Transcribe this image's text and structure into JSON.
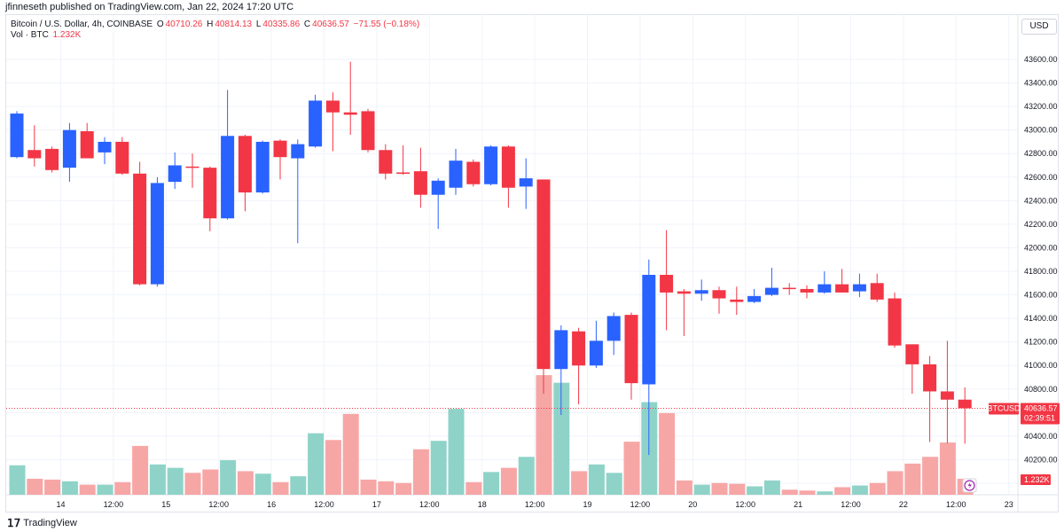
{
  "header": {
    "caption": "jfinneseth published on TradingView.com, Jan 22, 2024 17:20 UTC"
  },
  "legend": {
    "symbol": "Bitcoin / U.S. Dollar, 4h, COINBASE",
    "open_label": "O",
    "open": "40710.26",
    "high_label": "H",
    "high": "40814.13",
    "low_label": "L",
    "low": "40335.86",
    "close_label": "C",
    "close": "40636.57",
    "change": "−71.55 (−0.18%)",
    "vol_label": "Vol · BTC",
    "vol_value": "1.232K"
  },
  "currency": "USD",
  "price_tag": {
    "symbol": "BTCUSD",
    "price": "40636.57",
    "countdown": "02:39:51"
  },
  "vol_tag": "1.232K",
  "footer": {
    "brand": "TradingView"
  },
  "colors": {
    "up": "#2962ff",
    "down": "#f23645",
    "vol_up": "#8fd3c8",
    "vol_down": "#f7a6a6",
    "grid": "#f0f3fa",
    "price_line": "#f23645"
  },
  "chart_data": {
    "type": "candlestick",
    "y_axis": {
      "min": 40000,
      "max": 43700,
      "ticks": [
        "43600.00",
        "43400.00",
        "43200.00",
        "43000.00",
        "42800.00",
        "42600.00",
        "42400.00",
        "42200.00",
        "42000.00",
        "41800.00",
        "41600.00",
        "41400.00",
        "41200.00",
        "41000.00",
        "40800.00",
        "40600.00",
        "40400.00",
        "40200.00",
        "40000.00"
      ]
    },
    "x_ticks": [
      {
        "label": "14",
        "index": 2.5
      },
      {
        "label": "12:00",
        "index": 5.5
      },
      {
        "label": "15",
        "index": 8.5
      },
      {
        "label": "12:00",
        "index": 11.5
      },
      {
        "label": "16",
        "index": 14.5
      },
      {
        "label": "12:00",
        "index": 17.5
      },
      {
        "label": "17",
        "index": 20.5
      },
      {
        "label": "12:00",
        "index": 23.5
      },
      {
        "label": "18",
        "index": 26.5
      },
      {
        "label": "12:00",
        "index": 29.5
      },
      {
        "label": "19",
        "index": 32.5
      },
      {
        "label": "12:00",
        "index": 35.5
      },
      {
        "label": "20",
        "index": 38.5
      },
      {
        "label": "12:00",
        "index": 41.5
      },
      {
        "label": "21",
        "index": 44.5
      },
      {
        "label": "12:00",
        "index": 47.5
      },
      {
        "label": "22",
        "index": 50.5
      },
      {
        "label": "12:00",
        "index": 53.5
      },
      {
        "label": "23",
        "index": 56.5
      }
    ],
    "last_price": 40636.57,
    "volume_max": 1.0,
    "candles": [
      {
        "o": 42770,
        "h": 43160,
        "l": 42760,
        "c": 43140,
        "v": 0.35
      },
      {
        "o": 42830,
        "h": 43040,
        "l": 42690,
        "c": 42760,
        "v": 0.19
      },
      {
        "o": 42840,
        "h": 42860,
        "l": 42640,
        "c": 42660,
        "v": 0.18
      },
      {
        "o": 42680,
        "h": 43060,
        "l": 42560,
        "c": 43000,
        "v": 0.16
      },
      {
        "o": 42990,
        "h": 43060,
        "l": 42760,
        "c": 42760,
        "v": 0.12
      },
      {
        "o": 42810,
        "h": 42940,
        "l": 42710,
        "c": 42900,
        "v": 0.12
      },
      {
        "o": 42900,
        "h": 42940,
        "l": 42620,
        "c": 42630,
        "v": 0.15
      },
      {
        "o": 42630,
        "h": 42730,
        "l": 41680,
        "c": 41690,
        "v": 0.58
      },
      {
        "o": 41690,
        "h": 42600,
        "l": 41670,
        "c": 42550,
        "v": 0.36
      },
      {
        "o": 42560,
        "h": 42810,
        "l": 42500,
        "c": 42700,
        "v": 0.32
      },
      {
        "o": 42690,
        "h": 42800,
        "l": 42510,
        "c": 42680,
        "v": 0.26
      },
      {
        "o": 42680,
        "h": 42690,
        "l": 42140,
        "c": 42250,
        "v": 0.3
      },
      {
        "o": 42250,
        "h": 43340,
        "l": 42240,
        "c": 42950,
        "v": 0.41
      },
      {
        "o": 42950,
        "h": 42960,
        "l": 42310,
        "c": 42470,
        "v": 0.28
      },
      {
        "o": 42470,
        "h": 42910,
        "l": 42460,
        "c": 42900,
        "v": 0.25
      },
      {
        "o": 42910,
        "h": 42920,
        "l": 42580,
        "c": 42770,
        "v": 0.15
      },
      {
        "o": 42760,
        "h": 42920,
        "l": 42040,
        "c": 42880,
        "v": 0.22
      },
      {
        "o": 42860,
        "h": 43300,
        "l": 42850,
        "c": 43250,
        "v": 0.73
      },
      {
        "o": 43250,
        "h": 43320,
        "l": 42820,
        "c": 43150,
        "v": 0.65
      },
      {
        "o": 43150,
        "h": 43580,
        "l": 42960,
        "c": 43130,
        "v": 0.96
      },
      {
        "o": 43160,
        "h": 43180,
        "l": 42810,
        "c": 42830,
        "v": 0.18
      },
      {
        "o": 42830,
        "h": 42880,
        "l": 42580,
        "c": 42630,
        "v": 0.16
      },
      {
        "o": 42640,
        "h": 42870,
        "l": 42620,
        "c": 42630,
        "v": 0.14
      },
      {
        "o": 42650,
        "h": 42850,
        "l": 42340,
        "c": 42450,
        "v": 0.54
      },
      {
        "o": 42450,
        "h": 42590,
        "l": 42160,
        "c": 42570,
        "v": 0.64
      },
      {
        "o": 42510,
        "h": 42840,
        "l": 42450,
        "c": 42740,
        "v": 1.02
      },
      {
        "o": 42730,
        "h": 42750,
        "l": 42520,
        "c": 42540,
        "v": 0.15
      },
      {
        "o": 42540,
        "h": 42870,
        "l": 42530,
        "c": 42860,
        "v": 0.27
      },
      {
        "o": 42860,
        "h": 42870,
        "l": 42340,
        "c": 42510,
        "v": 0.32
      },
      {
        "o": 42520,
        "h": 42760,
        "l": 42330,
        "c": 42590,
        "v": 0.45
      },
      {
        "o": 42580,
        "h": 42580,
        "l": 40760,
        "c": 40970,
        "v": 1.42
      },
      {
        "o": 40970,
        "h": 41340,
        "l": 40580,
        "c": 41300,
        "v": 1.33
      },
      {
        "o": 41290,
        "h": 41320,
        "l": 40670,
        "c": 41000,
        "v": 0.28
      },
      {
        "o": 41000,
        "h": 41380,
        "l": 40980,
        "c": 41210,
        "v": 0.36
      },
      {
        "o": 41210,
        "h": 41450,
        "l": 41090,
        "c": 41420,
        "v": 0.26
      },
      {
        "o": 41430,
        "h": 41450,
        "l": 40710,
        "c": 40850,
        "v": 0.63
      },
      {
        "o": 40840,
        "h": 41900,
        "l": 40240,
        "c": 41770,
        "v": 1.1
      },
      {
        "o": 41770,
        "h": 42150,
        "l": 41300,
        "c": 41620,
        "v": 0.97
      },
      {
        "o": 41630,
        "h": 41650,
        "l": 41250,
        "c": 41610,
        "v": 0.17
      },
      {
        "o": 41610,
        "h": 41730,
        "l": 41550,
        "c": 41640,
        "v": 0.12
      },
      {
        "o": 41640,
        "h": 41670,
        "l": 41440,
        "c": 41570,
        "v": 0.14
      },
      {
        "o": 41560,
        "h": 41670,
        "l": 41430,
        "c": 41540,
        "v": 0.13
      },
      {
        "o": 41540,
        "h": 41650,
        "l": 41530,
        "c": 41590,
        "v": 0.1
      },
      {
        "o": 41600,
        "h": 41830,
        "l": 41590,
        "c": 41660,
        "v": 0.17
      },
      {
        "o": 41660,
        "h": 41700,
        "l": 41600,
        "c": 41650,
        "v": 0.06
      },
      {
        "o": 41650,
        "h": 41680,
        "l": 41570,
        "c": 41620,
        "v": 0.05
      },
      {
        "o": 41620,
        "h": 41800,
        "l": 41610,
        "c": 41690,
        "v": 0.04
      },
      {
        "o": 41690,
        "h": 41820,
        "l": 41620,
        "c": 41620,
        "v": 0.09
      },
      {
        "o": 41630,
        "h": 41780,
        "l": 41580,
        "c": 41690,
        "v": 0.11
      },
      {
        "o": 41700,
        "h": 41780,
        "l": 41540,
        "c": 41560,
        "v": 0.14
      },
      {
        "o": 41570,
        "h": 41620,
        "l": 41150,
        "c": 41170,
        "v": 0.28
      },
      {
        "o": 41180,
        "h": 41180,
        "l": 40760,
        "c": 41010,
        "v": 0.37
      },
      {
        "o": 41010,
        "h": 41080,
        "l": 40350,
        "c": 40780,
        "v": 0.45
      },
      {
        "o": 40780,
        "h": 41210,
        "l": 40340,
        "c": 40710,
        "v": 0.62
      },
      {
        "o": 40710,
        "h": 40814,
        "l": 40336,
        "c": 40637,
        "v": 0.19
      }
    ]
  }
}
